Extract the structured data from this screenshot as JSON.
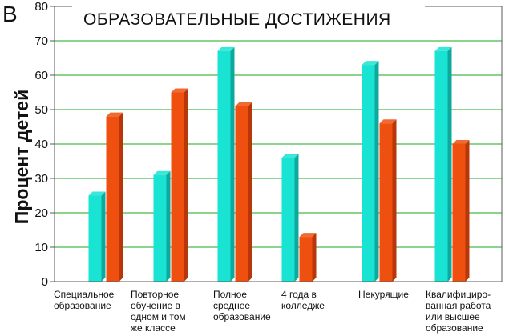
{
  "panel_label": "В",
  "colors": {
    "series1": "#19e3d2",
    "series1_dark": "#0fa89c",
    "series2": "#f0500f",
    "series2_dark": "#b7360a",
    "grid": "#17a817",
    "plot_border": "#5a5a5a"
  },
  "chart_data": {
    "type": "bar",
    "title": "ОБРАЗОВАТЕЛЬНЫЕ ДОСТИЖЕНИЯ",
    "ylabel": "Процент детей",
    "xlabel": "",
    "ylim": [
      0,
      80
    ],
    "yticks": [
      "0",
      "10",
      "20",
      "30",
      "40",
      "50",
      "60",
      "70",
      "80"
    ],
    "grid": true,
    "categories": [
      [
        "Специальное",
        "образование"
      ],
      [
        "Повторное",
        "обучение в",
        "одном и том",
        "же классе"
      ],
      [
        "Полное",
        "среднее",
        "образование"
      ],
      [
        "4 года в",
        "колледже"
      ],
      [
        "Некурящие"
      ],
      [
        "Квалифициро-",
        "ванная работа",
        "или высшее",
        "образование"
      ]
    ],
    "series": [
      {
        "values": [
          25,
          31,
          67,
          36,
          63,
          67
        ]
      },
      {
        "values": [
          48,
          55,
          51,
          13,
          46,
          40
        ]
      }
    ]
  }
}
